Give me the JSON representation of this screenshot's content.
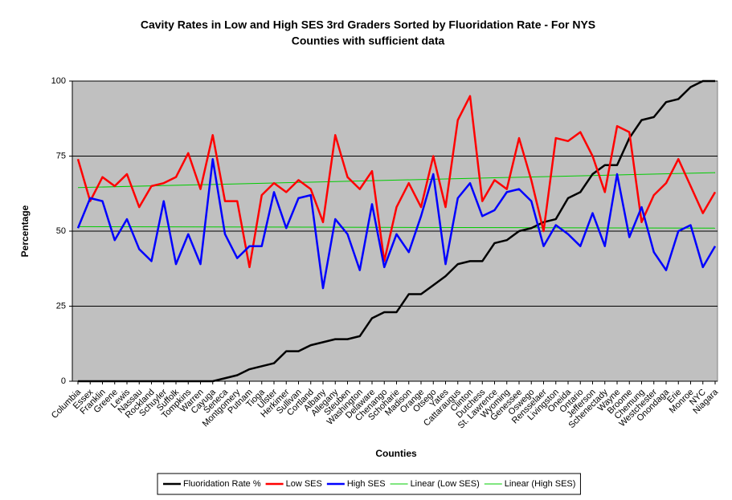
{
  "chart_data": {
    "type": "line",
    "title": [
      "Cavity Rates in Low and High SES 3rd Graders Sorted by Fluoridation Rate - For NYS",
      "Counties with sufficient data"
    ],
    "x_label": "Counties",
    "y_label": "Percentage",
    "categories": [
      "Columbia",
      "Essex",
      "Franklin",
      "Greene",
      "Lewis",
      "Nassau",
      "Rockland",
      "Schuyler",
      "Suffolk",
      "Tompkins",
      "Warren",
      "Cayuga",
      "Seneca",
      "Montgomery",
      "Putnam",
      "Tioga",
      "Ulster",
      "Herkimer",
      "Sullivan",
      "Cortland",
      "Albany",
      "Allegany",
      "Steuben",
      "Washington",
      "Delaware",
      "Chenango",
      "Schoharie",
      "Madison",
      "Orange",
      "Otsego",
      "Yates",
      "Cattaraugus",
      "Clinton",
      "Dutchess",
      "St. Lawrence",
      "Wyoming",
      "Genessee",
      "Oswego",
      "Rensselaer",
      "Livingston",
      "Oneida",
      "Ontario",
      "Jefferson",
      "Schenectady",
      "Wayne",
      "Broome",
      "Chemung",
      "Westchester",
      "Onondaga",
      "Erie",
      "Monroe",
      "NYC",
      "Niagara"
    ],
    "series": [
      {
        "name": "Fluoridation Rate %",
        "color": "#000000",
        "values": [
          0,
          0,
          0,
          0,
          0,
          0,
          0,
          0,
          0,
          0,
          0,
          0,
          1,
          2,
          4,
          5,
          6,
          10,
          10,
          12,
          13,
          14,
          14,
          15,
          21,
          23,
          23,
          29,
          29,
          32,
          35,
          39,
          40,
          40,
          46,
          47,
          50,
          51,
          53,
          54,
          61,
          63,
          69,
          72,
          72,
          81,
          87,
          88,
          93,
          94,
          98,
          100,
          100
        ]
      },
      {
        "name": "Low SES",
        "color": "#ff0000",
        "values": [
          74,
          60,
          68,
          65,
          69,
          58,
          65,
          66,
          68,
          76,
          64,
          82,
          60,
          60,
          38,
          62,
          66,
          63,
          67,
          64,
          53,
          82,
          68,
          64,
          70,
          40,
          58,
          66,
          58,
          75,
          58,
          87,
          95,
          60,
          67,
          64,
          81,
          67,
          50,
          81,
          80,
          83,
          75,
          63,
          85,
          83,
          53,
          62,
          66,
          74,
          65,
          56,
          63
        ]
      },
      {
        "name": "High SES",
        "color": "#0000ff",
        "values": [
          51,
          61,
          60,
          47,
          54,
          44,
          40,
          60,
          39,
          49,
          39,
          74,
          49,
          41,
          45,
          45,
          63,
          51,
          61,
          62,
          31,
          54,
          49,
          37,
          59,
          38,
          49,
          43,
          55,
          69,
          39,
          61,
          66,
          55,
          57,
          63,
          64,
          60,
          45,
          52,
          49,
          45,
          56,
          45,
          69,
          48,
          58,
          43,
          37,
          50,
          52,
          38,
          45
        ]
      }
    ],
    "trendlines": [
      {
        "name": "Linear (Low SES)",
        "color": "#00cc00",
        "ends": [
          64.5,
          69.5
        ]
      },
      {
        "name": "Linear (High SES)",
        "color": "#00cc00",
        "ends": [
          51.5,
          51
        ]
      }
    ],
    "ylim": [
      0,
      100
    ],
    "yticks": [
      0,
      25,
      50,
      75,
      100
    ],
    "grid": true,
    "plot_background": "#c0c0c0",
    "legend": "bottom"
  }
}
